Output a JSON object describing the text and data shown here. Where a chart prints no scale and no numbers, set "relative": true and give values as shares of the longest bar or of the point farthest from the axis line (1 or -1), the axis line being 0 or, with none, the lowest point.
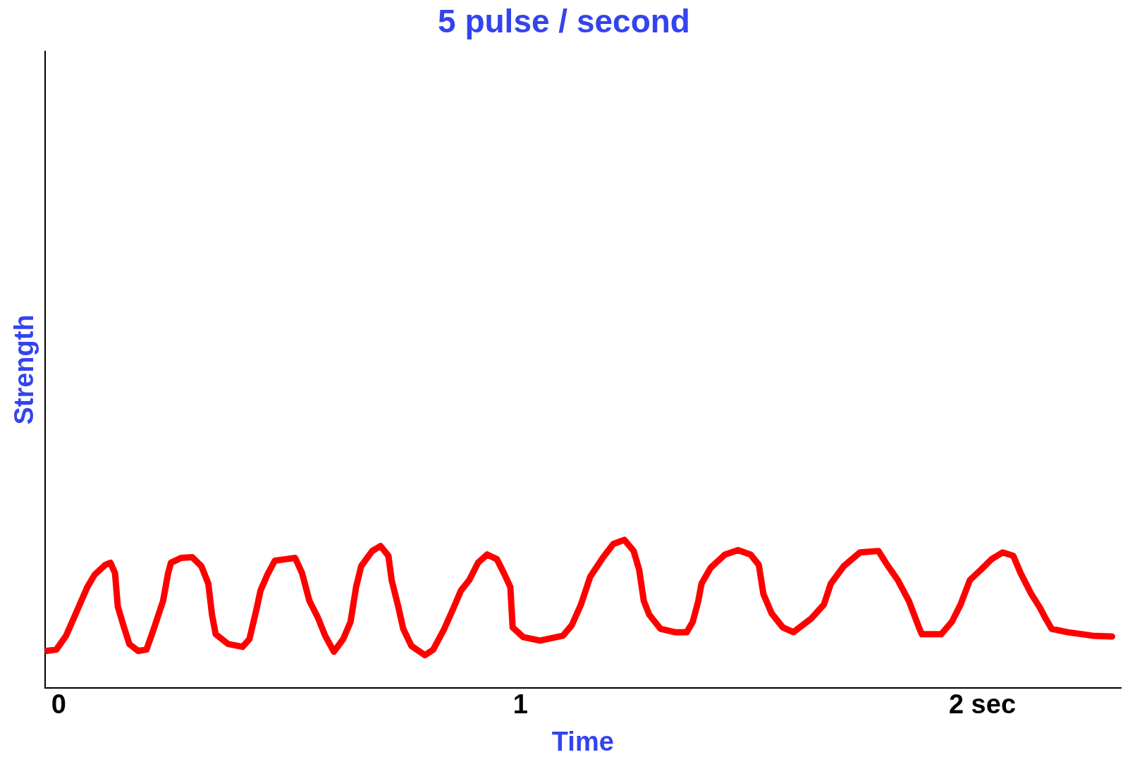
{
  "chart_data": {
    "type": "line",
    "title": "5 pulse / second",
    "xlabel": "Time",
    "ylabel": "Strength",
    "relative": true,
    "grid": false,
    "legend": false,
    "marker": "none",
    "line_style": "solid",
    "xlim": [
      -0.03,
      2.3
    ],
    "xticks": [
      0,
      1,
      {
        "value": 2,
        "label": "2 sec"
      }
    ],
    "x": [
      -0.027,
      -0.005,
      0.016,
      0.039,
      0.062,
      0.078,
      0.101,
      0.112,
      0.122,
      0.128,
      0.14,
      0.153,
      0.172,
      0.19,
      0.206,
      0.226,
      0.237,
      0.243,
      0.265,
      0.289,
      0.309,
      0.324,
      0.332,
      0.34,
      0.367,
      0.398,
      0.413,
      0.429,
      0.437,
      0.452,
      0.468,
      0.491,
      0.512,
      0.527,
      0.543,
      0.562,
      0.577,
      0.596,
      0.616,
      0.632,
      0.644,
      0.655,
      0.679,
      0.697,
      0.714,
      0.721,
      0.736,
      0.746,
      0.764,
      0.793,
      0.811,
      0.835,
      0.855,
      0.871,
      0.889,
      0.908,
      0.928,
      0.949,
      0.964,
      0.978,
      0.983,
      1.006,
      1.042,
      1.092,
      1.111,
      1.131,
      1.151,
      1.178,
      1.201,
      1.225,
      1.245,
      1.257,
      1.267,
      1.279,
      1.303,
      1.334,
      1.36,
      1.373,
      1.385,
      1.392,
      1.412,
      1.443,
      1.471,
      1.498,
      1.516,
      1.526,
      1.544,
      1.568,
      1.591,
      1.63,
      1.657,
      1.672,
      1.7,
      1.735,
      1.775,
      1.794,
      1.817,
      1.841,
      1.864,
      1.869,
      1.911,
      1.934,
      1.953,
      1.973,
      1.997,
      2.02,
      2.044,
      2.067,
      2.083,
      2.106,
      2.125,
      2.137,
      2.15,
      2.184,
      2.239,
      2.281
    ],
    "series": [
      {
        "color": "#ff0000",
        "values": [
          0.249,
          0.258,
          0.352,
          0.516,
          0.681,
          0.765,
          0.831,
          0.845,
          0.775,
          0.549,
          0.423,
          0.296,
          0.249,
          0.258,
          0.399,
          0.587,
          0.775,
          0.845,
          0.878,
          0.883,
          0.822,
          0.704,
          0.493,
          0.362,
          0.296,
          0.277,
          0.329,
          0.54,
          0.657,
          0.765,
          0.859,
          0.869,
          0.878,
          0.775,
          0.587,
          0.469,
          0.352,
          0.244,
          0.329,
          0.446,
          0.681,
          0.822,
          0.925,
          0.958,
          0.892,
          0.728,
          0.54,
          0.399,
          0.282,
          0.221,
          0.258,
          0.399,
          0.54,
          0.657,
          0.728,
          0.845,
          0.901,
          0.869,
          0.775,
          0.681,
          0.408,
          0.343,
          0.319,
          0.352,
          0.423,
          0.563,
          0.751,
          0.878,
          0.972,
          1,
          0.925,
          0.798,
          0.587,
          0.493,
          0.399,
          0.376,
          0.376,
          0.446,
          0.587,
          0.704,
          0.812,
          0.901,
          0.93,
          0.901,
          0.831,
          0.634,
          0.502,
          0.408,
          0.376,
          0.469,
          0.563,
          0.704,
          0.822,
          0.915,
          0.925,
          0.831,
          0.728,
          0.587,
          0.399,
          0.362,
          0.362,
          0.446,
          0.563,
          0.728,
          0.798,
          0.869,
          0.915,
          0.892,
          0.775,
          0.634,
          0.54,
          0.469,
          0.399,
          0.376,
          0.352,
          0.347
        ]
      }
    ]
  }
}
